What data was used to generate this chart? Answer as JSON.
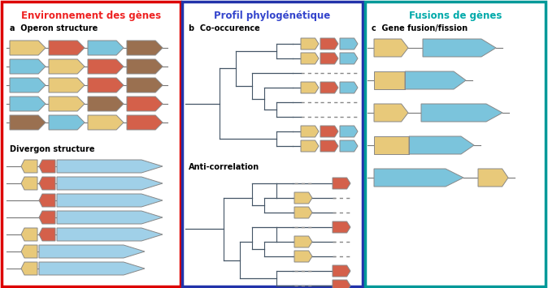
{
  "title_left": "Environnement des gènes",
  "title_mid": "Profil phylogénétique",
  "title_right": "Fusions de gènes",
  "label_a": "a  Operon structure",
  "label_b": "b  Co-occurence",
  "label_c": "c  Gene fusion/fission",
  "label_div": "Divergon structure",
  "label_anti": "Anti-correlation",
  "color_yellow": "#E8C97A",
  "color_red": "#D4604A",
  "color_blue": "#7BC4DC",
  "color_brown": "#9A7050",
  "color_blue_light": "#A0D0E8",
  "border_red": "#DD0000",
  "border_blue": "#2233AA",
  "border_teal": "#009999",
  "title_red": "#EE2222",
  "title_blue": "#3344CC",
  "title_teal": "#00AAAA",
  "bg_white": "#FFFFFF",
  "tree_color": "#445566",
  "line_color": "#777777"
}
